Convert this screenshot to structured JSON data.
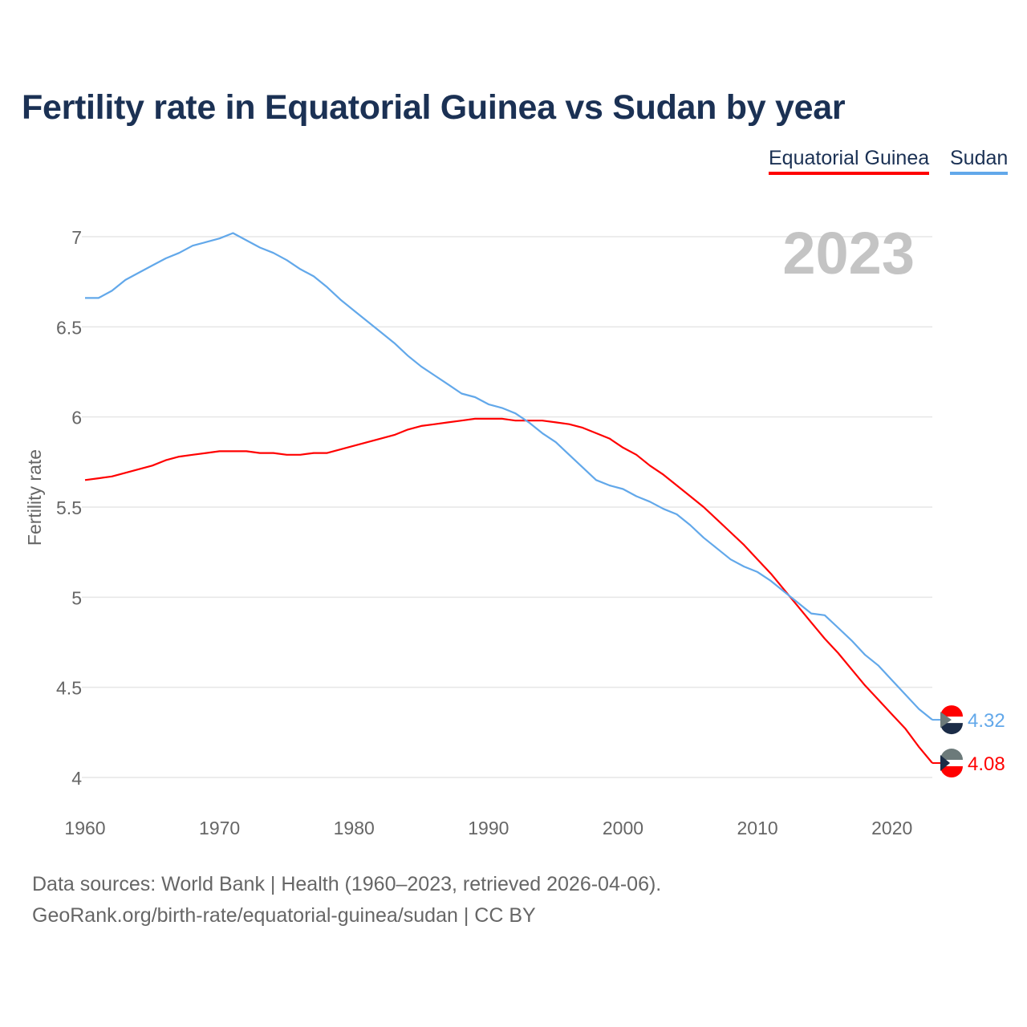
{
  "title": "Fertility rate in Equatorial Guinea vs Sudan by year",
  "footer": {
    "sources": "Data sources: World Bank | Health (1960–2023, retrieved 2026-04-06).",
    "credit": "GeoRank.org/birth-rate/equatorial-guinea/sudan | CC BY"
  },
  "chart_data": {
    "type": "line",
    "title": "Fertility rate in Equatorial Guinea vs Sudan by year",
    "xlabel": "",
    "ylabel": "Fertility rate",
    "year_label": "2023",
    "xlim": [
      1960,
      2023
    ],
    "ylim": [
      4,
      7
    ],
    "x_ticks": [
      "1960",
      "1970",
      "1980",
      "1990",
      "2000",
      "2010",
      "2020"
    ],
    "y_ticks": [
      "4",
      "4.5",
      "5",
      "5.5",
      "6",
      "6.5",
      "7"
    ],
    "grid": true,
    "legend_position": "top-right",
    "x": [
      1960,
      1961,
      1962,
      1963,
      1964,
      1965,
      1966,
      1967,
      1968,
      1969,
      1970,
      1971,
      1972,
      1973,
      1974,
      1975,
      1976,
      1977,
      1978,
      1979,
      1980,
      1981,
      1982,
      1983,
      1984,
      1985,
      1986,
      1987,
      1988,
      1989,
      1990,
      1991,
      1992,
      1993,
      1994,
      1995,
      1996,
      1997,
      1998,
      1999,
      2000,
      2001,
      2002,
      2003,
      2004,
      2005,
      2006,
      2007,
      2008,
      2009,
      2010,
      2011,
      2012,
      2013,
      2014,
      2015,
      2016,
      2017,
      2018,
      2019,
      2020,
      2021,
      2022,
      2023
    ],
    "series": [
      {
        "name": "Equatorial Guinea",
        "color": "#ff0000",
        "end_label": "4.08",
        "values": [
          5.65,
          5.66,
          5.67,
          5.69,
          5.71,
          5.73,
          5.76,
          5.78,
          5.79,
          5.8,
          5.81,
          5.81,
          5.81,
          5.8,
          5.8,
          5.79,
          5.79,
          5.8,
          5.8,
          5.82,
          5.84,
          5.86,
          5.88,
          5.9,
          5.93,
          5.95,
          5.96,
          5.97,
          5.98,
          5.99,
          5.99,
          5.99,
          5.98,
          5.98,
          5.98,
          5.97,
          5.96,
          5.94,
          5.91,
          5.88,
          5.83,
          5.79,
          5.73,
          5.68,
          5.62,
          5.56,
          5.5,
          5.43,
          5.36,
          5.29,
          5.21,
          5.13,
          5.04,
          4.95,
          4.86,
          4.77,
          4.69,
          4.6,
          4.51,
          4.43,
          4.35,
          4.27,
          4.17,
          4.08
        ]
      },
      {
        "name": "Sudan",
        "color": "#62a8ea",
        "end_label": "4.32",
        "values": [
          6.66,
          6.66,
          6.7,
          6.76,
          6.8,
          6.84,
          6.88,
          6.91,
          6.95,
          6.97,
          6.99,
          7.02,
          6.98,
          6.94,
          6.91,
          6.87,
          6.82,
          6.78,
          6.72,
          6.65,
          6.59,
          6.53,
          6.47,
          6.41,
          6.34,
          6.28,
          6.23,
          6.18,
          6.13,
          6.11,
          6.07,
          6.05,
          6.02,
          5.97,
          5.91,
          5.86,
          5.79,
          5.72,
          5.65,
          5.62,
          5.6,
          5.56,
          5.53,
          5.49,
          5.46,
          5.4,
          5.33,
          5.27,
          5.21,
          5.17,
          5.14,
          5.09,
          5.03,
          4.97,
          4.91,
          4.9,
          4.83,
          4.76,
          4.68,
          4.62,
          4.54,
          4.46,
          4.38,
          4.32
        ]
      }
    ]
  }
}
